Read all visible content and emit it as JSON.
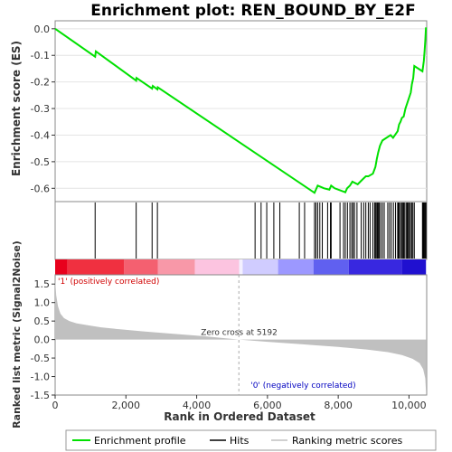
{
  "chart_data": {
    "type": "line",
    "title": "Enrichment plot: REN_BOUND_BY_E2F",
    "es_panel": {
      "ylabel": "Enrichment score (ES)",
      "ylim": [
        -0.65,
        0.03
      ],
      "yticks": [
        "0.0",
        "-0.1",
        "-0.2",
        "-0.3",
        "-0.4",
        "-0.5",
        "-0.6"
      ],
      "ytick_values": [
        0.0,
        -0.1,
        -0.2,
        -0.3,
        -0.4,
        -0.5,
        -0.6
      ],
      "series": [
        {
          "name": "Enrichment profile",
          "color": "#00e000",
          "x": [
            0,
            1130,
            1150,
            2290,
            2300,
            2740,
            2760,
            2890,
            2900,
            7330,
            7420,
            7600,
            7750,
            7800,
            7900,
            8200,
            8250,
            8330,
            8400,
            8550,
            8700,
            8780,
            8850,
            8980,
            9050,
            9090,
            9130,
            9180,
            9250,
            9480,
            9550,
            9680,
            9720,
            9760,
            9800,
            9850,
            9900,
            9950,
            10000,
            10050,
            10080,
            10120,
            10150,
            10380,
            10420,
            10440,
            10460,
            10480
          ],
          "y": [
            0.0,
            -0.105,
            -0.085,
            -0.195,
            -0.185,
            -0.225,
            -0.215,
            -0.228,
            -0.22,
            -0.617,
            -0.59,
            -0.6,
            -0.605,
            -0.59,
            -0.6,
            -0.615,
            -0.6,
            -0.59,
            -0.575,
            -0.585,
            -0.565,
            -0.555,
            -0.555,
            -0.545,
            -0.52,
            -0.49,
            -0.465,
            -0.44,
            -0.42,
            -0.4,
            -0.41,
            -0.385,
            -0.36,
            -0.35,
            -0.335,
            -0.33,
            -0.3,
            -0.28,
            -0.26,
            -0.24,
            -0.21,
            -0.185,
            -0.14,
            -0.16,
            -0.12,
            -0.085,
            -0.045,
            0.005
          ]
        }
      ]
    },
    "hits_panel": {
      "legend_name": "Hits",
      "hit_ranks": [
        1130,
        2290,
        2740,
        2890,
        5650,
        5820,
        5980,
        6180,
        6350,
        6900,
        7050,
        7330,
        7370,
        7420,
        7480,
        7550,
        7700,
        7780,
        7800,
        8050,
        8150,
        8200,
        8260,
        8330,
        8380,
        8420,
        8460,
        8530,
        8650,
        8720,
        8780,
        8850,
        8900,
        8980,
        9030,
        9060,
        9090,
        9110,
        9130,
        9160,
        9200,
        9250,
        9300,
        9400,
        9450,
        9500,
        9560,
        9620,
        9680,
        9700,
        9720,
        9760,
        9790,
        9820,
        9850,
        9880,
        9920,
        9950,
        9980,
        10010,
        10040,
        10080,
        10110,
        10150,
        10380,
        10400,
        10420,
        10440,
        10460,
        10480
      ]
    },
    "rank_bar": {
      "colors": [
        "#e8001c",
        "#f03040",
        "#f46070",
        "#f898a8",
        "#fcc4e0",
        "#f4f0ff",
        "#d0ccff",
        "#9c98ff",
        "#6060f0",
        "#3828e0",
        "#2010d0"
      ],
      "segments": [
        350,
        1950,
        2900,
        3950,
        5200,
        5300,
        6300,
        7300,
        8300,
        9800,
        10480
      ]
    },
    "metric_panel": {
      "ylabel": "Ranked list metric (Signal2Noise)",
      "ylim": [
        -1.5,
        1.75
      ],
      "yticks": [
        "1.5",
        "1.0",
        "0.5",
        "0.0",
        "-0.5",
        "-1.0",
        "-1.5"
      ],
      "ytick_values": [
        1.5,
        1.0,
        0.5,
        0.0,
        -0.5,
        -1.0,
        -1.5
      ],
      "fill_color": "#c0c0c0",
      "x": [
        0,
        30,
        80,
        150,
        250,
        400,
        600,
        900,
        1300,
        1800,
        2500,
        3300,
        4200,
        5192,
        6000,
        7000,
        8000,
        8800,
        9400,
        9800,
        10100,
        10300,
        10400,
        10460,
        10480
      ],
      "y": [
        1.65,
        1.2,
        0.9,
        0.7,
        0.58,
        0.5,
        0.44,
        0.39,
        0.33,
        0.28,
        0.22,
        0.16,
        0.09,
        0.0,
        -0.06,
        -0.13,
        -0.2,
        -0.27,
        -0.34,
        -0.42,
        -0.52,
        -0.64,
        -0.8,
        -1.05,
        -1.4
      ],
      "zero_cross_label": "Zero cross at 5192",
      "zero_cross": 5192,
      "pos_label": "'1' (positively correlated)",
      "neg_label": "'0' (negatively correlated)"
    },
    "xlabel": "Rank in Ordered Dataset",
    "xlim": [
      0,
      10500
    ],
    "xticks": [
      "0",
      "2,000",
      "4,000",
      "6,000",
      "8,000",
      "10,000"
    ],
    "xtick_values": [
      0,
      2000,
      4000,
      6000,
      8000,
      10000
    ],
    "legend": {
      "placement": "bottom",
      "entries": [
        {
          "label": "Enrichment profile",
          "color": "#00e000"
        },
        {
          "label": "Hits",
          "color": "#000000"
        },
        {
          "label": "Ranking metric scores",
          "color": "#c0c0c0"
        }
      ]
    }
  }
}
